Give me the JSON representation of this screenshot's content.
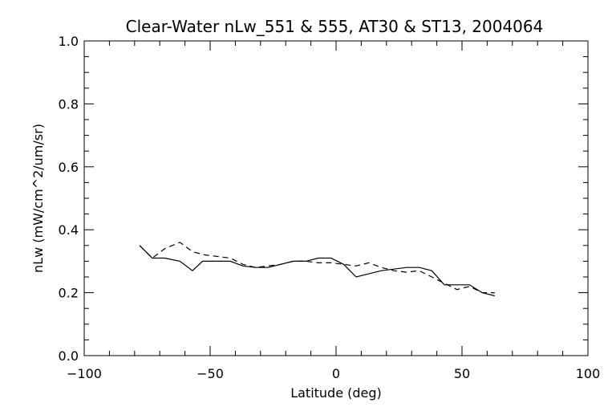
{
  "chart_data": {
    "type": "line",
    "title": "Clear-Water nLw_551 & 555, AT30 & ST13, 2004064",
    "xlabel": "Latitude (deg)",
    "ylabel": "nLw (mW/cm^2/um/sr)",
    "xlim": [
      -100,
      100
    ],
    "ylim": [
      0.0,
      1.0
    ],
    "x_ticks": [
      -100,
      -50,
      0,
      50,
      100
    ],
    "y_ticks": [
      0.0,
      0.2,
      0.4,
      0.6,
      0.8,
      1.0
    ],
    "x_tick_labels": [
      "−100",
      "−50",
      "0",
      "50",
      "100"
    ],
    "y_tick_labels": [
      "0.0",
      "0.2",
      "0.4",
      "0.6",
      "0.8",
      "1.0"
    ],
    "grid": false,
    "series": [
      {
        "style": "solid",
        "color": "#000000",
        "x": [
          -78,
          -73,
          -68,
          -62,
          -57,
          -53,
          -47,
          -42,
          -37,
          -32,
          -27,
          -22,
          -17,
          -12,
          -7,
          -2,
          3,
          8,
          13,
          18,
          23,
          28,
          33,
          38,
          43,
          48,
          53,
          58,
          63
        ],
        "y": [
          0.35,
          0.31,
          0.31,
          0.3,
          0.27,
          0.3,
          0.3,
          0.3,
          0.285,
          0.28,
          0.28,
          0.29,
          0.3,
          0.3,
          0.31,
          0.31,
          0.29,
          0.25,
          0.26,
          0.27,
          0.275,
          0.28,
          0.28,
          0.27,
          0.225,
          0.225,
          0.225,
          0.2,
          0.19
        ]
      },
      {
        "style": "dashed",
        "color": "#000000",
        "x": [
          -78,
          -73,
          -68,
          -62,
          -57,
          -52,
          -47,
          -42,
          -37,
          -32,
          -27,
          -22,
          -17,
          -12,
          -7,
          -2,
          3,
          8,
          13,
          18,
          23,
          28,
          33,
          38,
          43,
          48,
          53,
          58,
          63
        ],
        "y": [
          0.35,
          0.31,
          0.34,
          0.36,
          0.33,
          0.32,
          0.315,
          0.31,
          0.29,
          0.28,
          0.285,
          0.29,
          0.3,
          0.3,
          0.295,
          0.295,
          0.29,
          0.285,
          0.295,
          0.28,
          0.27,
          0.265,
          0.27,
          0.25,
          0.23,
          0.21,
          0.22,
          0.2,
          0.2
        ]
      }
    ]
  }
}
